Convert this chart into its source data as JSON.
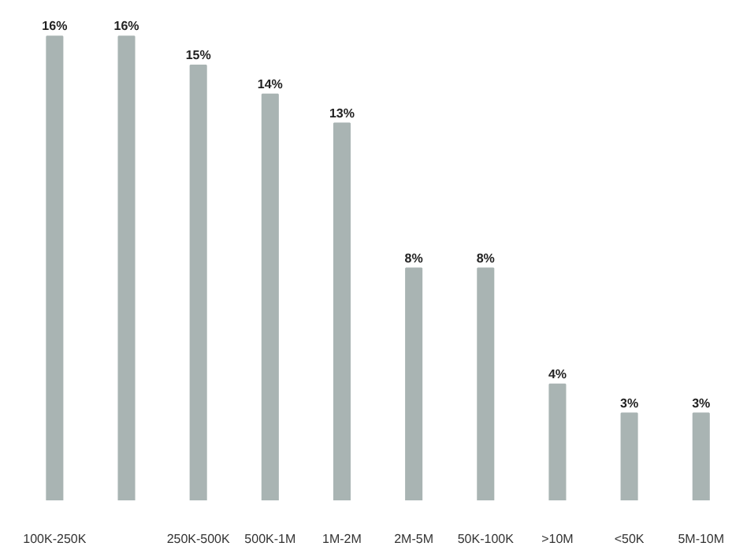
{
  "chart_data": {
    "type": "bar",
    "categories": [
      "100K-250K",
      null,
      "250K-500K",
      "500K-1M",
      "1M-2M",
      "2M-5M",
      "50K-100K",
      ">10M",
      "<50K",
      "5M-10M"
    ],
    "values": [
      16,
      16,
      15,
      14,
      13,
      8,
      8,
      4,
      3,
      3
    ],
    "value_labels": [
      "16%",
      "16%",
      "15%",
      "14%",
      "13%",
      "8%",
      "8%",
      "4%",
      "3%",
      "3%"
    ],
    "color": "#a9b4b3",
    "grid": false
  }
}
